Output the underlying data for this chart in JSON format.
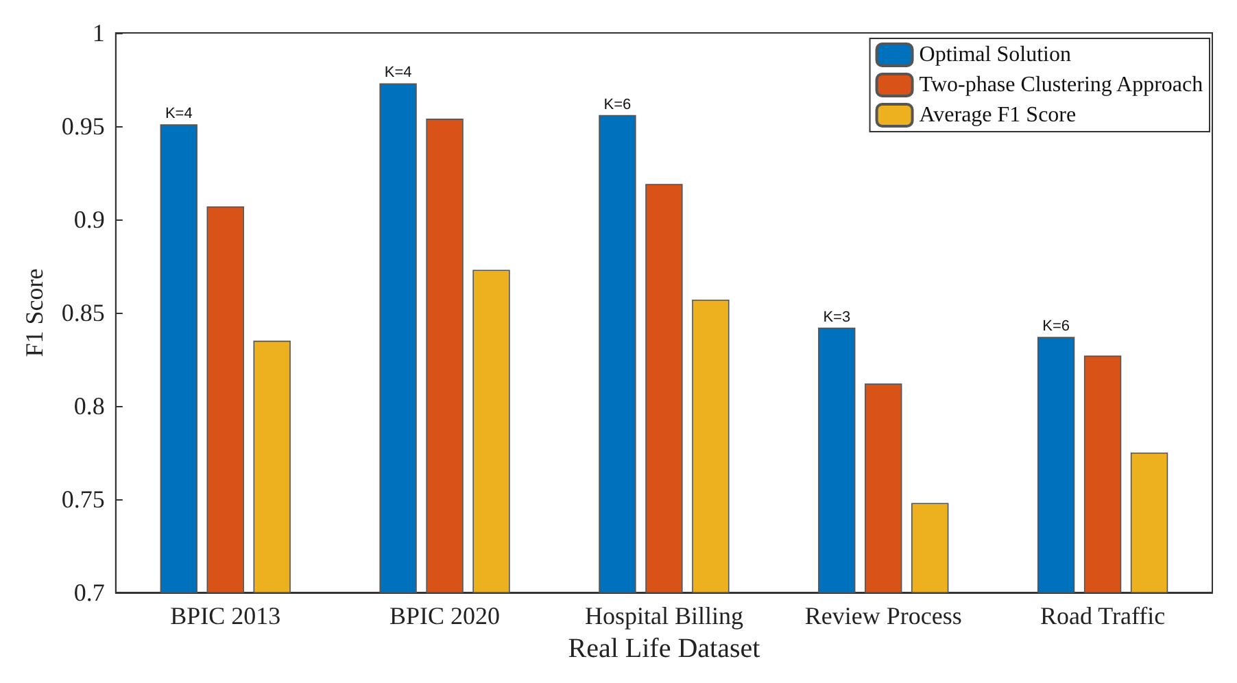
{
  "chart_data": {
    "type": "bar",
    "xlabel": "Real Life Dataset",
    "ylabel": "F1 Score",
    "categories": [
      "BPIC 2013",
      "BPIC 2020",
      "Hospital Billing",
      "Review Process",
      "Road Traffic"
    ],
    "series": [
      {
        "name": "Optimal Solution",
        "color": "#0072bd",
        "values": [
          0.951,
          0.973,
          0.956,
          0.842,
          0.837
        ]
      },
      {
        "name": "Two-phase Clustering Approach",
        "color": "#d95319",
        "values": [
          0.907,
          0.954,
          0.919,
          0.812,
          0.827
        ]
      },
      {
        "name": "Average F1 Score",
        "color": "#edb120",
        "values": [
          0.835,
          0.873,
          0.857,
          0.748,
          0.775
        ]
      }
    ],
    "annotations": [
      "K=4",
      "K=4",
      "K=6",
      "K=3",
      "K=6"
    ],
    "ylim": [
      0.7,
      1
    ],
    "yticks": [
      0.7,
      0.75,
      0.8,
      0.85,
      0.9,
      0.95,
      1
    ],
    "grid": false,
    "legend": "top right"
  }
}
